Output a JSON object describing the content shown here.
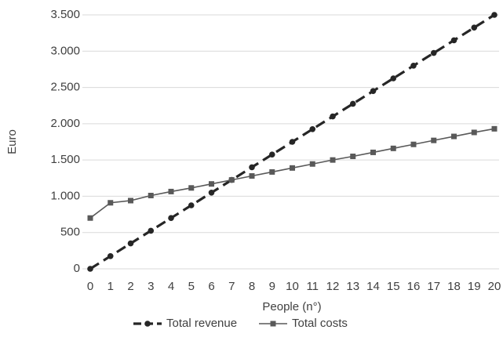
{
  "chart_data": {
    "type": "line",
    "x_label": "People (n°)",
    "y_label": "Euro",
    "x": [
      0,
      1,
      2,
      3,
      4,
      5,
      6,
      7,
      8,
      9,
      10,
      11,
      12,
      13,
      14,
      15,
      16,
      17,
      18,
      19,
      20
    ],
    "xlim": [
      0,
      20
    ],
    "xticks": [
      0,
      1,
      2,
      3,
      4,
      5,
      6,
      7,
      8,
      9,
      10,
      11,
      12,
      13,
      14,
      15,
      16,
      17,
      18,
      19,
      20
    ],
    "ylim": [
      0,
      3500
    ],
    "yticks": [
      0,
      500,
      {
        "value": 1000,
        "label": "1.000"
      },
      {
        "value": 1500,
        "label": "1.500"
      },
      {
        "value": 2000,
        "label": "2.000"
      },
      {
        "value": 2500,
        "label": "2.500"
      },
      {
        "value": 3000,
        "label": "3.000"
      },
      {
        "value": 3500,
        "label": "3.500"
      }
    ],
    "grid": true,
    "legend": "bottom",
    "series": [
      {
        "name": "Total revenue",
        "color": "#262626",
        "dashed": true,
        "marker": "circle",
        "values": [
          0,
          175,
          350,
          525,
          700,
          875,
          1050,
          1225,
          1400,
          1575,
          1750,
          1925,
          2100,
          2275,
          2450,
          2625,
          2800,
          2975,
          3150,
          3325,
          3500
        ]
      },
      {
        "name": "Total costs",
        "color": "#595959",
        "dashed": false,
        "marker": "square",
        "values": [
          700,
          910,
          940,
          1010,
          1065,
          1115,
          1170,
          1225,
          1280,
          1335,
          1390,
          1445,
          1500,
          1550,
          1605,
          1660,
          1715,
          1770,
          1825,
          1880,
          1930
        ]
      }
    ]
  }
}
